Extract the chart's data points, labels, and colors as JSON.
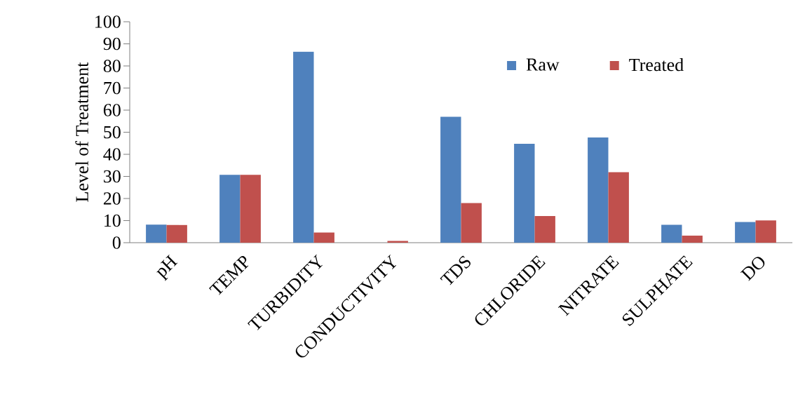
{
  "chart_data": {
    "type": "bar",
    "ylabel": "Level of Treatment",
    "categories": [
      "pH",
      "TEMP",
      "TURBIDITY",
      "CONDUCTIVITY",
      "TDS",
      "CHLORIDE",
      "NITRATE",
      "SULPHATE",
      "DO"
    ],
    "series": [
      {
        "name": "Raw",
        "color": "#4f81bd",
        "values": [
          8.2,
          30.7,
          86.4,
          0,
          57,
          44.8,
          47.6,
          8.1,
          9.4
        ]
      },
      {
        "name": "Treated",
        "color": "#c0504d",
        "values": [
          8.0,
          30.7,
          4.6,
          0.8,
          17.9,
          12.1,
          31.9,
          3.2,
          10.1
        ]
      }
    ],
    "ylim": [
      0,
      100
    ],
    "yticks": [
      0,
      10,
      20,
      30,
      40,
      50,
      60,
      70,
      80,
      90,
      100
    ],
    "legend": "top right",
    "grid": false
  }
}
